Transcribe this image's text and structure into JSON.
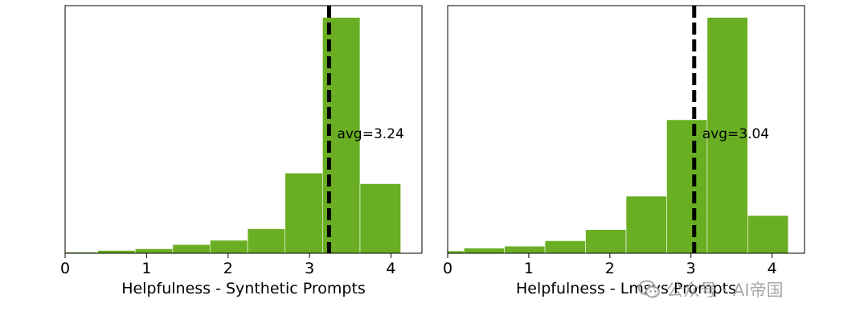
{
  "chart_data": [
    {
      "type": "bar",
      "bin_edges": [
        0.0,
        0.4,
        0.86,
        1.32,
        1.78,
        2.24,
        2.7,
        3.16,
        3.62,
        4.12
      ],
      "values": [
        0.5,
        1.2,
        1.9,
        3.7,
        5.5,
        10.4,
        34.0,
        100.0,
        29.5
      ],
      "xlabel": "Helpfulness - Synthetic Prompts",
      "xticks": [
        "0",
        "1",
        "2",
        "3",
        "4"
      ],
      "xlim": [
        0,
        4.38
      ],
      "ylim": [
        0,
        105
      ],
      "avg_value": 3.24,
      "avg_label": "avg=3.24",
      "bar_color": "#6aaf23",
      "avg_line_color": "#000000"
    },
    {
      "type": "bar",
      "bin_edges": [
        0.0,
        0.2,
        0.7,
        1.2,
        1.7,
        2.2,
        2.7,
        3.2,
        3.7,
        4.2
      ],
      "values": [
        1.0,
        2.2,
        3.0,
        5.3,
        10.0,
        24.2,
        56.6,
        100.0,
        16.0
      ],
      "xlabel": "Helpfulness - Lmsys Prompts",
      "xticks": [
        "0",
        "1",
        "2",
        "3",
        "4"
      ],
      "xlim": [
        0,
        4.4
      ],
      "ylim": [
        0,
        105
      ],
      "avg_value": 3.04,
      "avg_label": "avg=3.04",
      "bar_color": "#6aaf23",
      "avg_line_color": "#000000"
    }
  ],
  "watermark": {
    "text": "公众号 · AI帝国",
    "icon": "wechat-logo-icon"
  }
}
